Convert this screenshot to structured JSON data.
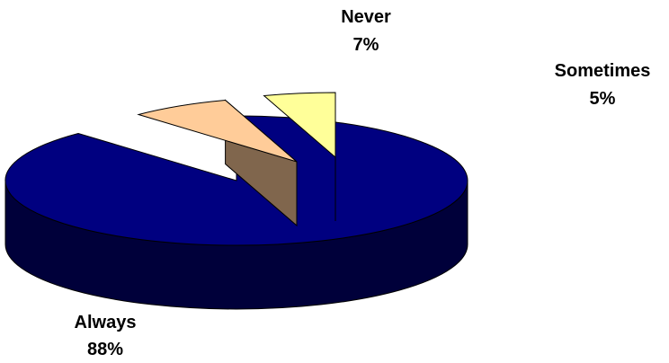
{
  "chart_data": {
    "type": "pie",
    "style": "3d-exploded",
    "slices": [
      {
        "label": "Always",
        "value": 88,
        "value_text": "88%",
        "color": "#000080"
      },
      {
        "label": "Never",
        "value": 7,
        "value_text": "7%",
        "color": "#FFCC99"
      },
      {
        "label": "Sometimes",
        "value": 5,
        "value_text": "5%",
        "color": "#FFFF99"
      }
    ],
    "title": "",
    "legend": "none"
  }
}
